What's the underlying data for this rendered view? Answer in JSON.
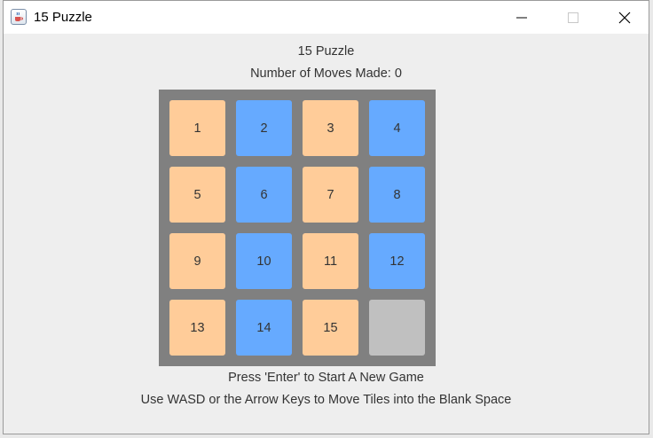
{
  "window": {
    "title": "15 Puzzle",
    "icon": "java-coffee-cup-icon"
  },
  "titlebar_buttons": {
    "minimize_icon": "minimize-icon",
    "maximize_icon": "maximize-icon",
    "close_icon": "close-icon"
  },
  "game": {
    "heading": "15 Puzzle",
    "moves_text": "Number of Moves Made: 0",
    "start_hint": "Press 'Enter' to Start A New Game",
    "controls_hint": "Use WASD or the Arrow Keys to Move Tiles into the Blank Space"
  },
  "board": {
    "colors": {
      "frame": "#808080",
      "orange_tile": "#ffcc99",
      "blue_tile": "#66aaff",
      "blank_tile": "#c0c0c0"
    },
    "tiles": [
      {
        "label": "1",
        "color": "orange"
      },
      {
        "label": "2",
        "color": "blue"
      },
      {
        "label": "3",
        "color": "orange"
      },
      {
        "label": "4",
        "color": "blue"
      },
      {
        "label": "5",
        "color": "orange"
      },
      {
        "label": "6",
        "color": "blue"
      },
      {
        "label": "7",
        "color": "orange"
      },
      {
        "label": "8",
        "color": "blue"
      },
      {
        "label": "9",
        "color": "orange"
      },
      {
        "label": "10",
        "color": "blue"
      },
      {
        "label": "11",
        "color": "orange"
      },
      {
        "label": "12",
        "color": "blue"
      },
      {
        "label": "13",
        "color": "orange"
      },
      {
        "label": "14",
        "color": "blue"
      },
      {
        "label": "15",
        "color": "orange"
      },
      {
        "label": "",
        "color": "blank"
      }
    ]
  }
}
